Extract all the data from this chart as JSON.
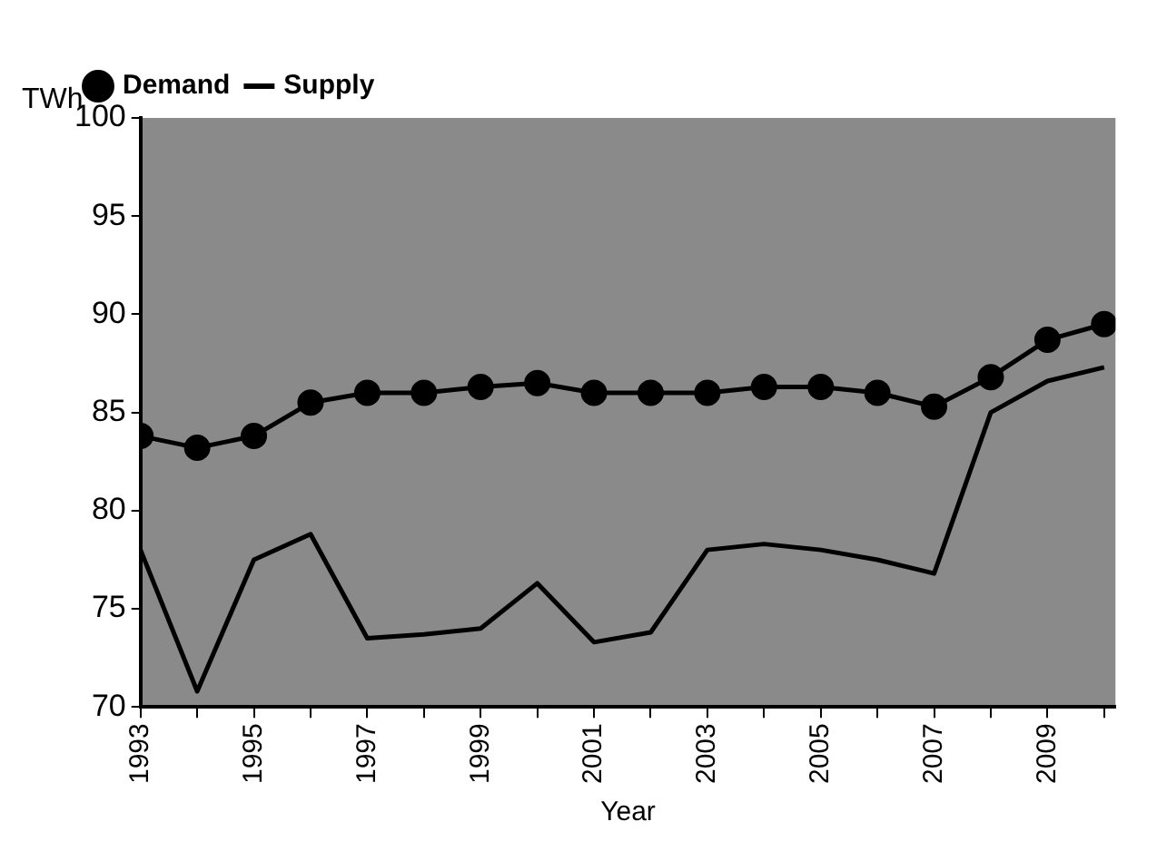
{
  "chart_data": {
    "type": "line",
    "ylabel": "TWh",
    "xlabel": "Year",
    "x": [
      1993,
      1994,
      1995,
      1996,
      1997,
      1998,
      1999,
      2000,
      2001,
      2002,
      2003,
      2004,
      2005,
      2006,
      2007,
      2008,
      2009,
      2010
    ],
    "series": [
      {
        "name": "Demand",
        "color": "#000000",
        "marker": "circle",
        "values": [
          83.8,
          83.2,
          83.8,
          85.5,
          86,
          86,
          86.3,
          86.5,
          86,
          86,
          86,
          86.3,
          86.3,
          86,
          85.3,
          86.8,
          88.7,
          89.5
        ]
      },
      {
        "name": "Supply",
        "color": "#000000",
        "marker": "none",
        "values": [
          78,
          70.8,
          77.5,
          78.8,
          73.5,
          73.7,
          74,
          76.3,
          73.3,
          73.8,
          78,
          78.3,
          78,
          77.5,
          76.8,
          85,
          86.6,
          87.3
        ]
      }
    ],
    "xlim": [
      1993,
      2010.2
    ],
    "xticks": [
      1993,
      {
        "value": 1994,
        "label": null
      },
      1995,
      {
        "value": 1996,
        "label": null
      },
      1997,
      {
        "value": 1998,
        "label": null
      },
      1999,
      {
        "value": 2000,
        "label": null
      },
      2001,
      {
        "value": 2002,
        "label": null
      },
      2003,
      {
        "value": 2004,
        "label": null
      },
      2005,
      {
        "value": 2006,
        "label": null
      },
      2007,
      {
        "value": 2008,
        "label": null
      },
      2009,
      {
        "value": 2010,
        "label": null
      }
    ],
    "ylim": [
      70,
      100
    ],
    "yticks": [
      70,
      75,
      80,
      85,
      90,
      95,
      100
    ],
    "grid": false,
    "legend": "top left",
    "line_style": "solid"
  }
}
